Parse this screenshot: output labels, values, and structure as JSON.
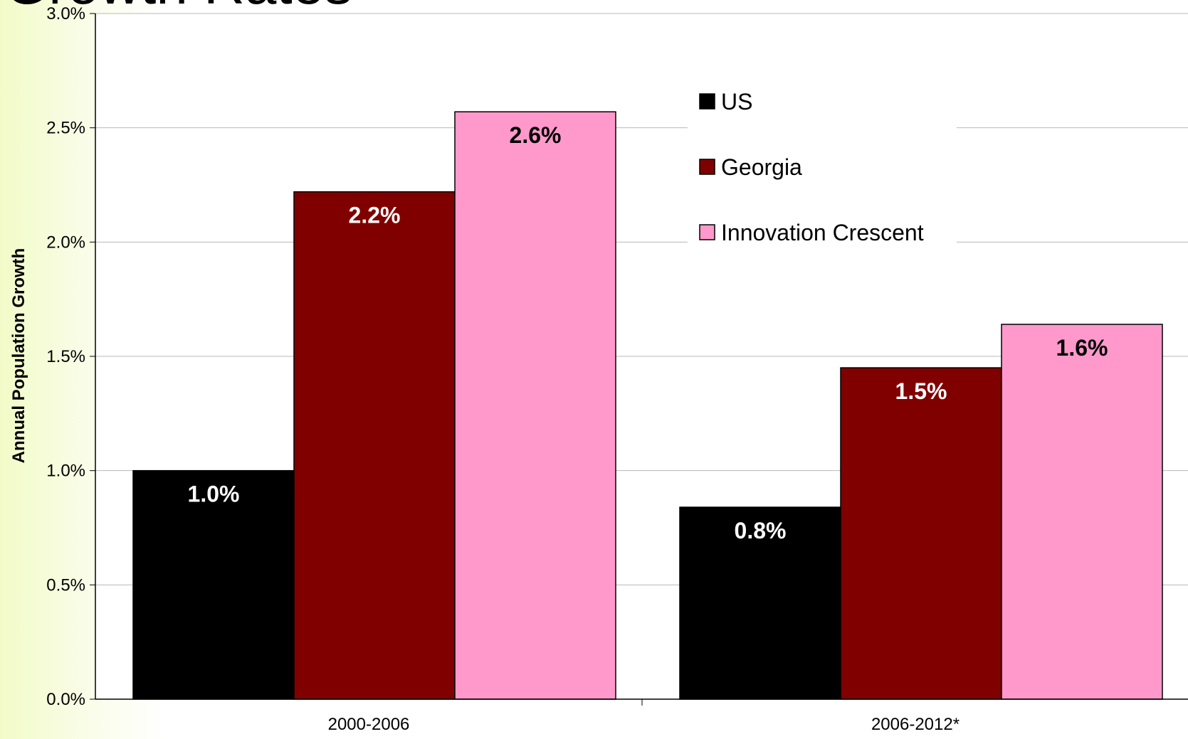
{
  "page": {
    "title": "Growth Rates"
  },
  "chart_data": {
    "type": "bar",
    "title": "",
    "ylabel": "Annual Population Growth",
    "xlabel": "",
    "categories": [
      "2000-2006",
      "2006-2012*"
    ],
    "series": [
      {
        "name": "US",
        "color": "#000000",
        "values": [
          1.0,
          0.84
        ],
        "labels": [
          "1.0%",
          "0.8%"
        ]
      },
      {
        "name": "Georgia",
        "color": "#800000",
        "values": [
          2.22,
          1.45
        ],
        "labels": [
          "2.2%",
          "1.5%"
        ]
      },
      {
        "name": "Innovation Crescent",
        "color": "#ff99cc",
        "values": [
          2.57,
          1.64
        ],
        "labels": [
          "2.6%",
          "1.6%"
        ]
      }
    ],
    "ylim": [
      0,
      3.0
    ],
    "yticks": [
      0.0,
      0.5,
      1.0,
      1.5,
      2.0,
      2.5,
      3.0
    ],
    "ytick_labels": [
      "0.0%",
      "0.5%",
      "1.0%",
      "1.5%",
      "2.0%",
      "2.5%",
      "3.0%"
    ],
    "grid": true,
    "legend": "top-center"
  }
}
